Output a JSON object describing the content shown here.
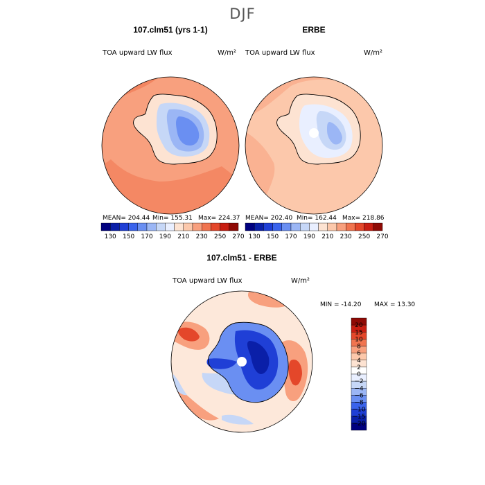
{
  "figure": {
    "title": "DJF"
  },
  "chart_data": [
    {
      "type": "heatmap",
      "projection": "south-polar-stereographic",
      "title": "107.clm51 (yrs 1-1)",
      "field": "TOA upward LW flux",
      "units": "W/m²",
      "stats": {
        "mean_label": "MEAN=",
        "mean": "204.44",
        "min_label": "Min=",
        "min": "155.31",
        "max_label": "Max=",
        "max": "224.37"
      },
      "contour_levels": [
        130,
        140,
        150,
        160,
        170,
        180,
        190,
        200,
        210,
        220,
        230,
        240,
        250,
        260,
        270
      ],
      "ocean_level": 220,
      "interior_levels": [
        180,
        170,
        160
      ]
    },
    {
      "type": "heatmap",
      "projection": "south-polar-stereographic",
      "title": "ERBE",
      "field": "TOA upward LW flux",
      "units": "W/m²",
      "stats": {
        "mean_label": "MEAN=",
        "mean": "202.40",
        "min_label": "Min=",
        "min": "162.44",
        "max_label": "Max=",
        "max": "218.86"
      },
      "contour_levels": [
        130,
        140,
        150,
        160,
        170,
        180,
        190,
        200,
        210,
        220,
        230,
        240,
        250,
        260,
        270
      ],
      "ocean_level": 210,
      "interior_levels": [
        190,
        180,
        170
      ],
      "missing_pole": true
    },
    {
      "type": "heatmap",
      "projection": "south-polar-stereographic",
      "title": "107.clm51 - ERBE",
      "field": "TOA upward LW flux",
      "units": "W/m²",
      "stats": {
        "min_label": "MIN =",
        "min": "-14.20",
        "max_label": "MAX =",
        "max": "13.30"
      },
      "contour_levels": [
        -20,
        -15,
        -10,
        -8,
        -6,
        -4,
        -2,
        0,
        2,
        4,
        6,
        8,
        10,
        15,
        20
      ],
      "missing_pole": true
    }
  ],
  "colorbar": {
    "abs_tick_labels": [
      "130",
      "150",
      "170",
      "190",
      "210",
      "230",
      "250",
      "270"
    ],
    "diff_tick_labels": [
      "20",
      "15",
      "10",
      "8",
      "6",
      "4",
      "2",
      "0",
      "−2",
      "−4",
      "−6",
      "−8",
      "−10",
      "−15",
      "−20"
    ],
    "abs_colors": [
      "#00007f",
      "#0a1fa8",
      "#1f3fd6",
      "#3a63ec",
      "#6a8ff2",
      "#9bb6f5",
      "#c6d7f7",
      "#e9efff",
      "#fde3d2",
      "#fcc8ab",
      "#f8a07e",
      "#f0744f",
      "#e4472a",
      "#c81e12",
      "#8f0a05"
    ],
    "diff_colors": [
      "#8f0a05",
      "#c81e12",
      "#e4472a",
      "#f0744f",
      "#f8a07e",
      "#fcc8ab",
      "#fde3d2",
      "#ffffff",
      "#e9efff",
      "#c6d7f7",
      "#9bb6f5",
      "#6a8ff2",
      "#3a63ec",
      "#1f3fd6",
      "#0a1fa8",
      "#00007f"
    ]
  }
}
